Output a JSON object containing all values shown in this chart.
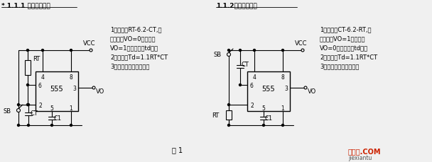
{
  "bg_color": "#f0f0f0",
  "title1": "* 1.1.1 人工启动单稳",
  "title2": "1.1.2人工启动单稳",
  "text1_lines": [
    "1）特点：RT-6.2-CT,人",
    "工启动，VO=0，稳态；",
    "VO=1，暂稳态（td）。",
    "2）公式：Td=1.1RT*CT",
    "3）用途：定时，延时。"
  ],
  "text2_lines": [
    "1）特点：CT-6.2-RT,人",
    "工启动，VO=1，稳态；",
    "VO=0，暂稳态（td）。",
    "2）公式：Td=1.1RT*CT",
    "3）用途：定时，延时。"
  ],
  "fig_label": "图 1",
  "line_color": "#000000",
  "text_color": "#000000"
}
